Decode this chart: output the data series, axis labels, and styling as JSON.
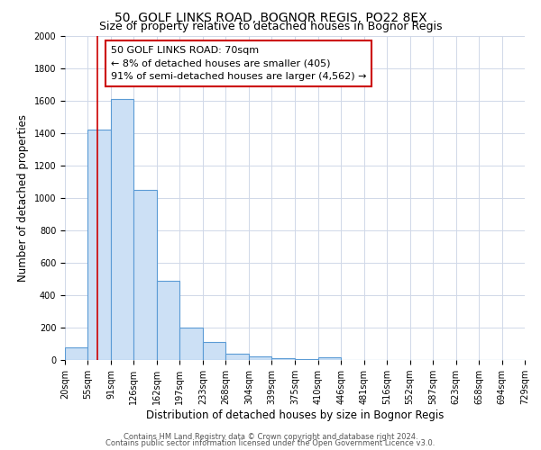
{
  "title": "50, GOLF LINKS ROAD, BOGNOR REGIS, PO22 8EX",
  "subtitle": "Size of property relative to detached houses in Bognor Regis",
  "xlabel": "Distribution of detached houses by size in Bognor Regis",
  "ylabel": "Number of detached properties",
  "bar_edges": [
    20,
    55,
    91,
    126,
    162,
    197,
    233,
    268,
    304,
    339,
    375,
    410,
    446,
    481,
    516,
    552,
    587,
    623,
    658,
    694,
    729
  ],
  "bar_heights": [
    80,
    1420,
    1610,
    1050,
    490,
    200,
    110,
    40,
    20,
    10,
    5,
    15,
    0,
    0,
    0,
    0,
    0,
    0,
    0,
    0
  ],
  "bar_color": "#cce0f5",
  "bar_edge_color": "#5b9bd5",
  "property_line_x": 70,
  "property_line_color": "#cc0000",
  "annotation_text": "50 GOLF LINKS ROAD: 70sqm\n← 8% of detached houses are smaller (405)\n91% of semi-detached houses are larger (4,562) →",
  "annotation_box_edge_color": "#cc0000",
  "ylim": [
    0,
    2000
  ],
  "yticks": [
    0,
    200,
    400,
    600,
    800,
    1000,
    1200,
    1400,
    1600,
    1800,
    2000
  ],
  "tick_labels": [
    "20sqm",
    "55sqm",
    "91sqm",
    "126sqm",
    "162sqm",
    "197sqm",
    "233sqm",
    "268sqm",
    "304sqm",
    "339sqm",
    "375sqm",
    "410sqm",
    "446sqm",
    "481sqm",
    "516sqm",
    "552sqm",
    "587sqm",
    "623sqm",
    "658sqm",
    "694sqm",
    "729sqm"
  ],
  "footer1": "Contains HM Land Registry data © Crown copyright and database right 2024.",
  "footer2": "Contains public sector information licensed under the Open Government Licence v3.0.",
  "bg_color": "#ffffff",
  "grid_color": "#d0d8e8",
  "title_fontsize": 10,
  "subtitle_fontsize": 9,
  "axis_label_fontsize": 8.5,
  "tick_fontsize": 7,
  "annotation_fontsize": 8
}
